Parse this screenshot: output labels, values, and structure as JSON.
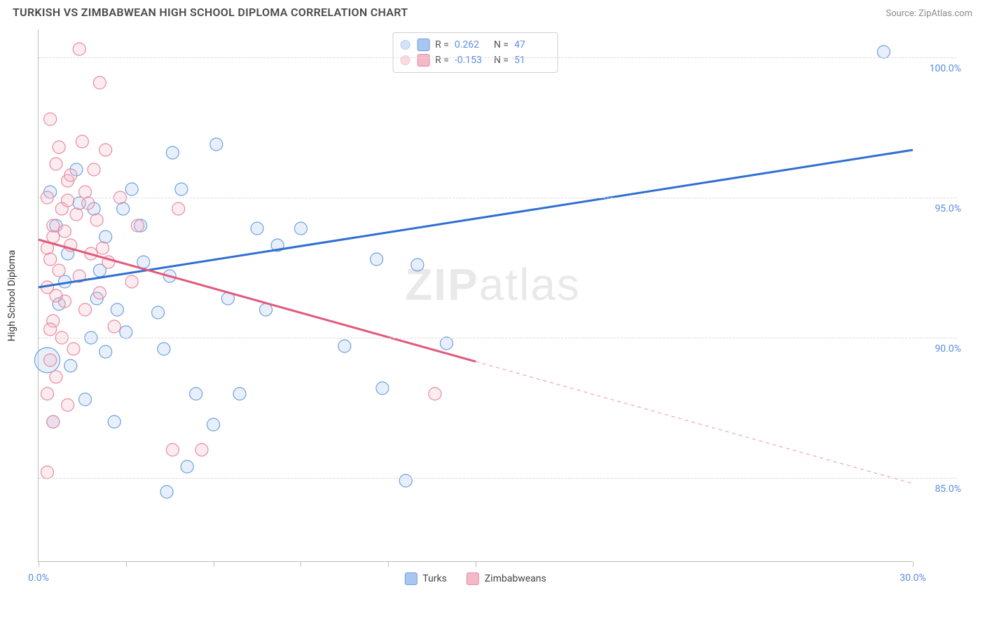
{
  "header": {
    "title": "TURKISH VS ZIMBABWEAN HIGH SCHOOL DIPLOMA CORRELATION CHART",
    "source": "Source: ZipAtlas.com"
  },
  "watermark": {
    "zip": "ZIP",
    "atlas": "atlas"
  },
  "chart": {
    "type": "scatter",
    "background_color": "#ffffff",
    "grid_color": "#d9d9d9",
    "axis_color": "#bdbdbd",
    "label_color": "#5a8ee0",
    "text_color": "#4a4a4a",
    "y_axis_title": "High School Diploma",
    "y_axis_title_fontsize": 14,
    "xlim": [
      0,
      30
    ],
    "ylim": [
      82,
      101
    ],
    "xticks": [
      0,
      3,
      6,
      9,
      12,
      15,
      30
    ],
    "xtick_labels": {
      "0": "0.0%",
      "30": "30.0%"
    },
    "yticks": [
      85,
      90,
      95,
      100
    ],
    "ytick_labels": {
      "85": "85.0%",
      "90": "90.0%",
      "95": "95.0%",
      "100": "100.0%"
    },
    "marker_radius": 9,
    "marker_stroke_width": 1.2,
    "marker_fill_opacity": 0.28,
    "line_width": 3,
    "series": [
      {
        "name": "Turks",
        "color_fill": "#a8c6f0",
        "color_stroke": "#6ea0e0",
        "line_color": "#2f6fd0",
        "stats": {
          "R": "0.262",
          "N": "47"
        },
        "trend": {
          "x1": 0,
          "y1": 91.8,
          "x2": 30,
          "y2": 96.7,
          "solid_to_x": 30
        },
        "points": [
          [
            0.3,
            89.2,
            18
          ],
          [
            29.0,
            100.2,
            9
          ],
          [
            6.1,
            96.9,
            9
          ],
          [
            4.6,
            96.6,
            9
          ],
          [
            3.2,
            95.3,
            9
          ],
          [
            4.9,
            95.3,
            9
          ],
          [
            2.9,
            94.6,
            9
          ],
          [
            1.9,
            94.6,
            9
          ],
          [
            9.0,
            93.9,
            9
          ],
          [
            7.5,
            93.9,
            9
          ],
          [
            8.2,
            93.3,
            9
          ],
          [
            11.6,
            92.8,
            9
          ],
          [
            13.0,
            92.6,
            9
          ],
          [
            3.6,
            92.7,
            9
          ],
          [
            4.5,
            92.2,
            9
          ],
          [
            2.0,
            91.4,
            9
          ],
          [
            0.7,
            91.2,
            9
          ],
          [
            1.0,
            93.0,
            9
          ],
          [
            6.5,
            91.4,
            9
          ],
          [
            4.1,
            90.9,
            9
          ],
          [
            0.6,
            94.0,
            9
          ],
          [
            1.3,
            96.0,
            9
          ],
          [
            2.3,
            93.6,
            9
          ],
          [
            3.5,
            94.0,
            9
          ],
          [
            7.8,
            91.0,
            9
          ],
          [
            4.3,
            89.6,
            9
          ],
          [
            2.3,
            89.5,
            9
          ],
          [
            6.9,
            88.0,
            9
          ],
          [
            5.4,
            88.0,
            9
          ],
          [
            11.8,
            88.2,
            9
          ],
          [
            10.5,
            89.7,
            9
          ],
          [
            6.0,
            86.9,
            9
          ],
          [
            5.1,
            85.4,
            9
          ],
          [
            4.4,
            84.5,
            9
          ],
          [
            12.6,
            84.9,
            9
          ],
          [
            2.6,
            87.0,
            9
          ],
          [
            1.6,
            87.8,
            9
          ],
          [
            0.5,
            87.0,
            9
          ],
          [
            0.4,
            95.2,
            9
          ],
          [
            1.1,
            89.0,
            9
          ],
          [
            1.8,
            90.0,
            9
          ],
          [
            0.9,
            92.0,
            9
          ],
          [
            2.1,
            92.4,
            9
          ],
          [
            3.0,
            90.2,
            9
          ],
          [
            1.4,
            94.8,
            9
          ],
          [
            2.7,
            91.0,
            9
          ],
          [
            14.0,
            89.8,
            9
          ]
        ]
      },
      {
        "name": "Zimbabweans",
        "color_fill": "#f4b8c6",
        "color_stroke": "#e88aa2",
        "line_color": "#e05a7c",
        "stats": {
          "R": "-0.153",
          "N": "51"
        },
        "trend": {
          "x1": 0,
          "y1": 93.5,
          "x2": 30,
          "y2": 84.8,
          "solid_to_x": 15
        },
        "points": [
          [
            1.4,
            100.3,
            9
          ],
          [
            2.1,
            99.1,
            9
          ],
          [
            0.4,
            97.8,
            9
          ],
          [
            2.3,
            96.7,
            9
          ],
          [
            0.6,
            96.2,
            9
          ],
          [
            1.0,
            95.6,
            9
          ],
          [
            1.6,
            95.2,
            9
          ],
          [
            0.3,
            95.0,
            9
          ],
          [
            0.8,
            94.6,
            9
          ],
          [
            1.3,
            94.4,
            9
          ],
          [
            2.0,
            94.2,
            9
          ],
          [
            4.8,
            94.6,
            9
          ],
          [
            3.4,
            94.0,
            9
          ],
          [
            0.5,
            93.6,
            9
          ],
          [
            1.1,
            93.3,
            9
          ],
          [
            1.8,
            93.0,
            9
          ],
          [
            0.4,
            92.8,
            9
          ],
          [
            2.4,
            92.7,
            9
          ],
          [
            0.7,
            92.4,
            9
          ],
          [
            1.4,
            92.2,
            9
          ],
          [
            0.3,
            91.8,
            9
          ],
          [
            2.1,
            91.6,
            9
          ],
          [
            0.9,
            91.3,
            9
          ],
          [
            1.6,
            91.0,
            9
          ],
          [
            0.5,
            90.6,
            9
          ],
          [
            2.6,
            90.4,
            9
          ],
          [
            0.8,
            90.0,
            9
          ],
          [
            1.2,
            89.6,
            9
          ],
          [
            0.4,
            89.2,
            9
          ],
          [
            0.6,
            88.6,
            9
          ],
          [
            0.3,
            88.0,
            9
          ],
          [
            1.0,
            87.6,
            9
          ],
          [
            0.5,
            87.0,
            9
          ],
          [
            5.6,
            86.0,
            9
          ],
          [
            4.6,
            86.0,
            9
          ],
          [
            0.3,
            85.2,
            9
          ],
          [
            13.6,
            88.0,
            9
          ],
          [
            1.9,
            96.0,
            9
          ],
          [
            0.7,
            96.8,
            9
          ],
          [
            1.5,
            97.0,
            9
          ],
          [
            2.8,
            95.0,
            9
          ],
          [
            3.2,
            92.0,
            9
          ],
          [
            1.1,
            95.8,
            9
          ],
          [
            0.5,
            94.0,
            9
          ],
          [
            0.9,
            93.8,
            9
          ],
          [
            1.7,
            94.8,
            9
          ],
          [
            0.4,
            90.3,
            9
          ],
          [
            2.2,
            93.2,
            9
          ],
          [
            0.6,
            91.5,
            9
          ],
          [
            1.0,
            94.9,
            9
          ],
          [
            0.3,
            93.2,
            9
          ]
        ]
      }
    ],
    "legend_bottom": [
      {
        "label": "Turks",
        "fill": "#a8c6f0",
        "stroke": "#6ea0e0"
      },
      {
        "label": "Zimbabweans",
        "fill": "#f4b8c6",
        "stroke": "#e88aa2"
      }
    ],
    "stat_box": {
      "r_label": "R =",
      "n_label": "N ="
    }
  }
}
